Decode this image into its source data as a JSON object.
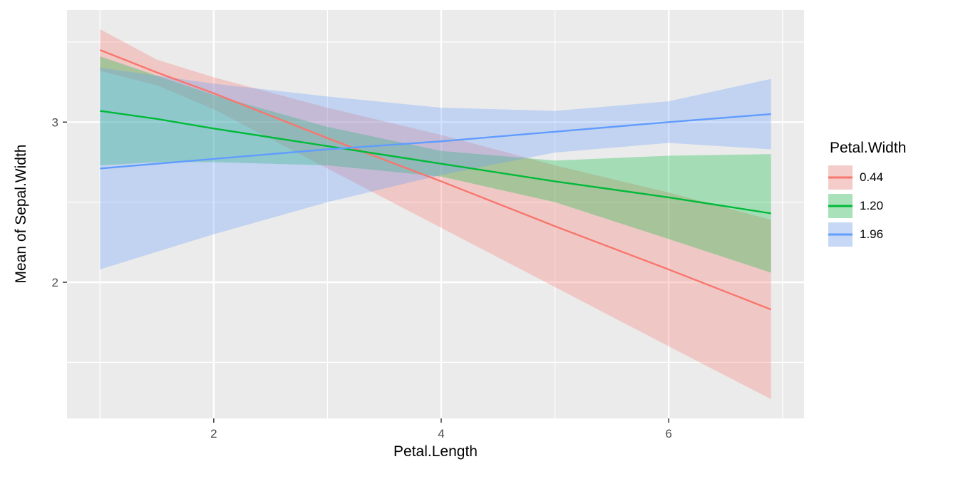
{
  "figure": {
    "background": "#FFFFFF",
    "panel_background": "#EBEBEB",
    "grid_color": "#FFFFFF",
    "tick_color": "#333333",
    "tick_label_color": "#4D4D4D",
    "axis_title_color": "#000000"
  },
  "legend": {
    "title": "Petal.Width",
    "key_background": "#F2F2F2",
    "items": [
      {
        "label": "0.44",
        "color": "#F8766D"
      },
      {
        "label": "1.20",
        "color": "#00BA38"
      },
      {
        "label": "1.96",
        "color": "#619CFF"
      }
    ]
  },
  "chart_data": {
    "type": "line",
    "title": "",
    "xlabel": "Petal.Length",
    "ylabel": "Mean of Sepal.Width",
    "xlim": [
      0.71,
      7.19
    ],
    "ylim": [
      1.15,
      3.7
    ],
    "x_major_ticks": [
      2,
      4,
      6
    ],
    "x_minor_ticks": [
      1,
      3,
      5,
      7
    ],
    "y_major_ticks": [
      2,
      3
    ],
    "y_minor_ticks": [
      1.5,
      2.5,
      3.5
    ],
    "grid": true,
    "legend_position": "right",
    "legend_title": "Petal.Width",
    "ribbon_opacity": 0.3,
    "series": [
      {
        "name": "0.44",
        "color": "#F8766D",
        "x": [
          1.0,
          1.5,
          2.0,
          3.0,
          4.0,
          5.0,
          6.0,
          6.9
        ],
        "y": [
          3.45,
          3.31,
          3.18,
          2.9,
          2.63,
          2.35,
          2.08,
          1.83
        ],
        "lo": [
          3.32,
          3.23,
          3.08,
          2.71,
          2.34,
          1.97,
          1.6,
          1.27
        ],
        "hi": [
          3.58,
          3.39,
          3.28,
          3.09,
          2.92,
          2.73,
          2.56,
          2.39
        ]
      },
      {
        "name": "1.20",
        "color": "#00BA38",
        "x": [
          1.0,
          1.5,
          2.0,
          3.0,
          4.0,
          5.0,
          6.0,
          6.9
        ],
        "y": [
          3.07,
          3.02,
          2.96,
          2.85,
          2.74,
          2.63,
          2.53,
          2.43
        ],
        "lo": [
          2.73,
          2.75,
          2.75,
          2.73,
          2.66,
          2.5,
          2.27,
          2.06
        ],
        "hi": [
          3.41,
          3.29,
          3.17,
          2.97,
          2.82,
          2.76,
          2.79,
          2.8
        ]
      },
      {
        "name": "1.96",
        "color": "#619CFF",
        "x": [
          1.0,
          1.5,
          2.0,
          3.0,
          4.0,
          5.0,
          6.0,
          6.9
        ],
        "y": [
          2.71,
          2.74,
          2.77,
          2.83,
          2.88,
          2.94,
          3.0,
          3.05
        ],
        "lo": [
          2.08,
          2.19,
          2.3,
          2.5,
          2.67,
          2.81,
          2.87,
          2.83
        ],
        "hi": [
          3.34,
          3.29,
          3.24,
          3.16,
          3.09,
          3.07,
          3.13,
          3.27
        ]
      }
    ]
  }
}
